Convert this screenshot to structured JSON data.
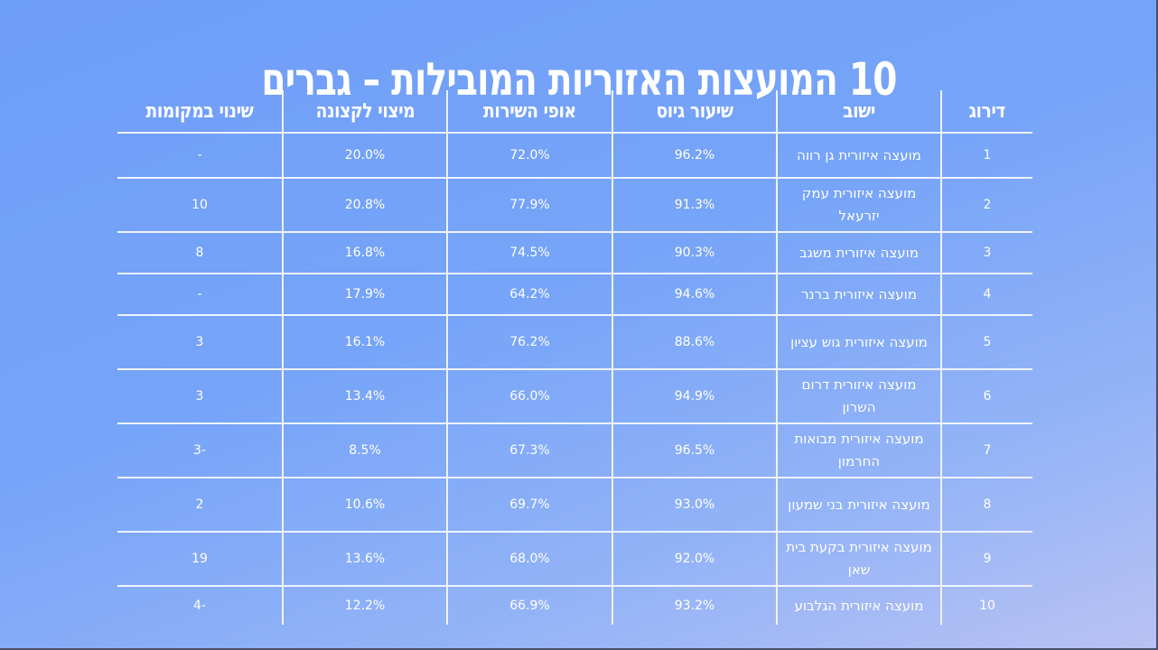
{
  "title": "10 המועצות האזוריות המובילות – גברים",
  "colors": {
    "background_top": "#6f9ef8",
    "background_bottom": "#b9c2f3",
    "text": "#ffffff",
    "grid_lines": "#eef3ff"
  },
  "table": {
    "headers": {
      "rank": "דירוג",
      "settlement": "ישוב",
      "conscription_rate": "שיעור גיוס",
      "service_character": "אופי השירות",
      "maximize_officers": "מיצוי לקצונה",
      "rank_change": "שינוי במקומות"
    },
    "rows": [
      {
        "rank": "1",
        "settlement": "מועצה איזורית גן רווה",
        "conscription_rate": "96.2%",
        "service_character": "72.0%",
        "maximize_officers": "20.0%",
        "rank_change": "-"
      },
      {
        "rank": "2",
        "settlement": "מועצה איזורית עמק יזרעאל",
        "conscription_rate": "91.3%",
        "service_character": "77.9%",
        "maximize_officers": "20.8%",
        "rank_change": "10"
      },
      {
        "rank": "3",
        "settlement": "מועצה איזורית משגב",
        "conscription_rate": "90.3%",
        "service_character": "74.5%",
        "maximize_officers": "16.8%",
        "rank_change": "8"
      },
      {
        "rank": "4",
        "settlement": "מועצה איזורית ברנר",
        "conscription_rate": "94.6%",
        "service_character": "64.2%",
        "maximize_officers": "17.9%",
        "rank_change": "-"
      },
      {
        "rank": "5",
        "settlement": "מועצה איזורית גוש עציון",
        "conscription_rate": "88.6%",
        "service_character": "76.2%",
        "maximize_officers": "16.1%",
        "rank_change": "3"
      },
      {
        "rank": "6",
        "settlement": "מועצה איזורית דרום השרון",
        "conscription_rate": "94.9%",
        "service_character": "66.0%",
        "maximize_officers": "13.4%",
        "rank_change": "3"
      },
      {
        "rank": "7",
        "settlement": "מועצה איזורית מבואות החרמון",
        "conscription_rate": "96.5%",
        "service_character": "67.3%",
        "maximize_officers": "8.5%",
        "rank_change": "-3"
      },
      {
        "rank": "8",
        "settlement": "מועצה איזורית בני שמעון",
        "conscription_rate": "93.0%",
        "service_character": "69.7%",
        "maximize_officers": "10.6%",
        "rank_change": "2"
      },
      {
        "rank": "9",
        "settlement": "מועצה איזורית בקעת בית שאן",
        "conscription_rate": "92.0%",
        "service_character": "68.0%",
        "maximize_officers": "13.6%",
        "rank_change": "19"
      },
      {
        "rank": "10",
        "settlement": "מועצה איזורית הגלבוע",
        "conscription_rate": "93.2%",
        "service_character": "66.9%",
        "maximize_officers": "12.2%",
        "rank_change": "-4"
      }
    ]
  }
}
